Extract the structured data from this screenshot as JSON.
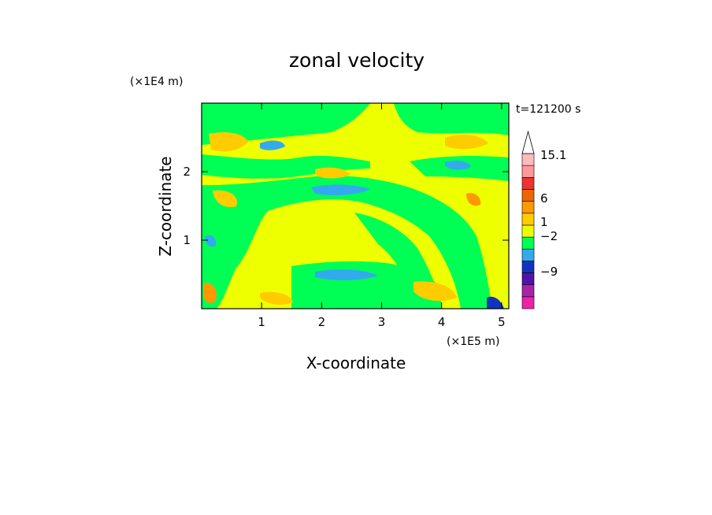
{
  "chart_data": {
    "type": "heatmap",
    "title": "zonal velocity",
    "xlabel": "X-coordinate",
    "ylabel": "Z-coordinate",
    "x_unit": "(×1E5 m)",
    "y_unit": "(×1E4 m)",
    "time_label": "t=121200 s",
    "xlim": [
      0,
      5.12
    ],
    "ylim": [
      0,
      3.0
    ],
    "xticks": [
      "1",
      "2",
      "3",
      "4",
      "5"
    ],
    "xtick_values": [
      1,
      2,
      3,
      4,
      5
    ],
    "yticks": [
      "1",
      "2"
    ],
    "ytick_values": [
      1,
      2
    ],
    "grid": false,
    "colorbar": {
      "levels_bottom_to_top": [
        {
          "color": "#ee22aa"
        },
        {
          "color": "#aa22aa"
        },
        {
          "color": "#5511aa"
        },
        {
          "color": "#1133bb"
        },
        {
          "color": "#33aaee"
        },
        {
          "color": "#00ff55"
        },
        {
          "color": "#eeff00"
        },
        {
          "color": "#ffcc00"
        },
        {
          "color": "#ff9900"
        },
        {
          "color": "#ee6600"
        },
        {
          "color": "#ee3333"
        },
        {
          "color": "#ff9999"
        },
        {
          "color": "#ffbbbb"
        }
      ],
      "labels": [
        {
          "text": "15.1",
          "value": 15.1
        },
        {
          "text": "6",
          "value": 6
        },
        {
          "text": "1",
          "value": 1
        },
        {
          "text": "−2",
          "value": -2
        },
        {
          "text": "−9",
          "value": -9
        }
      ],
      "extend": "max",
      "extend_color": "#ffffff"
    },
    "field_colors": {
      "background": "#eeff00",
      "positive": "#ffcc00",
      "positive_strong": "#ff9900",
      "neutral": "#00ff55",
      "negative": "#33aaee",
      "negative_strong": "#1133bb"
    }
  }
}
